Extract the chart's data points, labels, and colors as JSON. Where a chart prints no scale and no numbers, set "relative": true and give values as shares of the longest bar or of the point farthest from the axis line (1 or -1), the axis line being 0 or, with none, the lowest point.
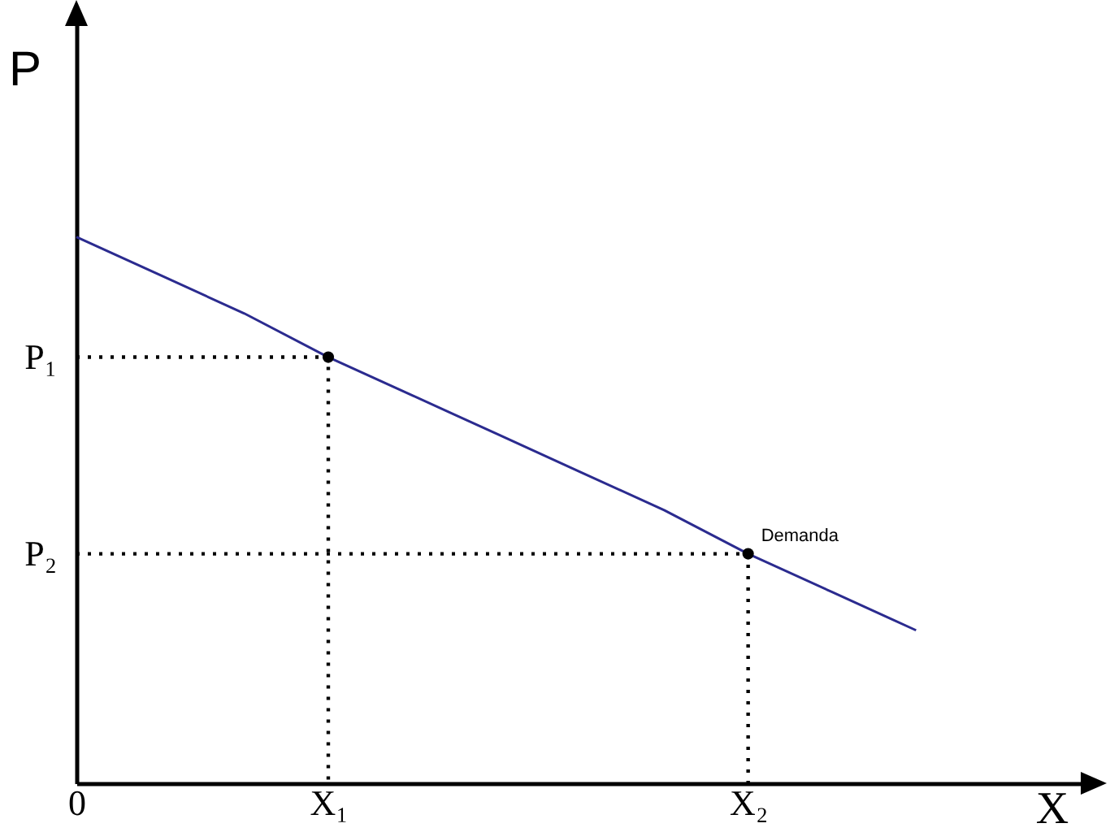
{
  "chart_data": {
    "type": "line",
    "relative": true,
    "xlabel": "X",
    "ylabel": "P",
    "categories": [
      "0",
      null,
      null,
      "X₁",
      null,
      null,
      null,
      null,
      "X₂",
      null,
      null,
      null,
      null
    ],
    "series": [
      {
        "name": "Demanda",
        "color": "#2b2b8f",
        "values": [
          1,
          0.93,
          0.86,
          0.78,
          0.71,
          0.64,
          0.57,
          0.5,
          0.42,
          0.35,
          0.28,
          null,
          null
        ]
      },
      {
        "color": "#000000",
        "line_style": "dotted",
        "x": [
          "0",
          "X₁",
          "X₁"
        ],
        "values": [
          0.78,
          0.78,
          0
        ]
      },
      {
        "color": "#000000",
        "line_style": "dotted",
        "x": [
          "0",
          "X₂",
          "X₂"
        ],
        "values": [
          0.42,
          0.42,
          0
        ]
      },
      {
        "type": "scatter",
        "marker": "circle",
        "color": "#000000",
        "x": [
          "X₁",
          "X₂"
        ],
        "values": [
          0.78,
          0.42
        ]
      }
    ],
    "annotations": [
      {
        "text": "P₁",
        "x": "0",
        "y": 0.78
      },
      {
        "text": "P₂",
        "x": "0",
        "y": 0.42
      }
    ]
  }
}
